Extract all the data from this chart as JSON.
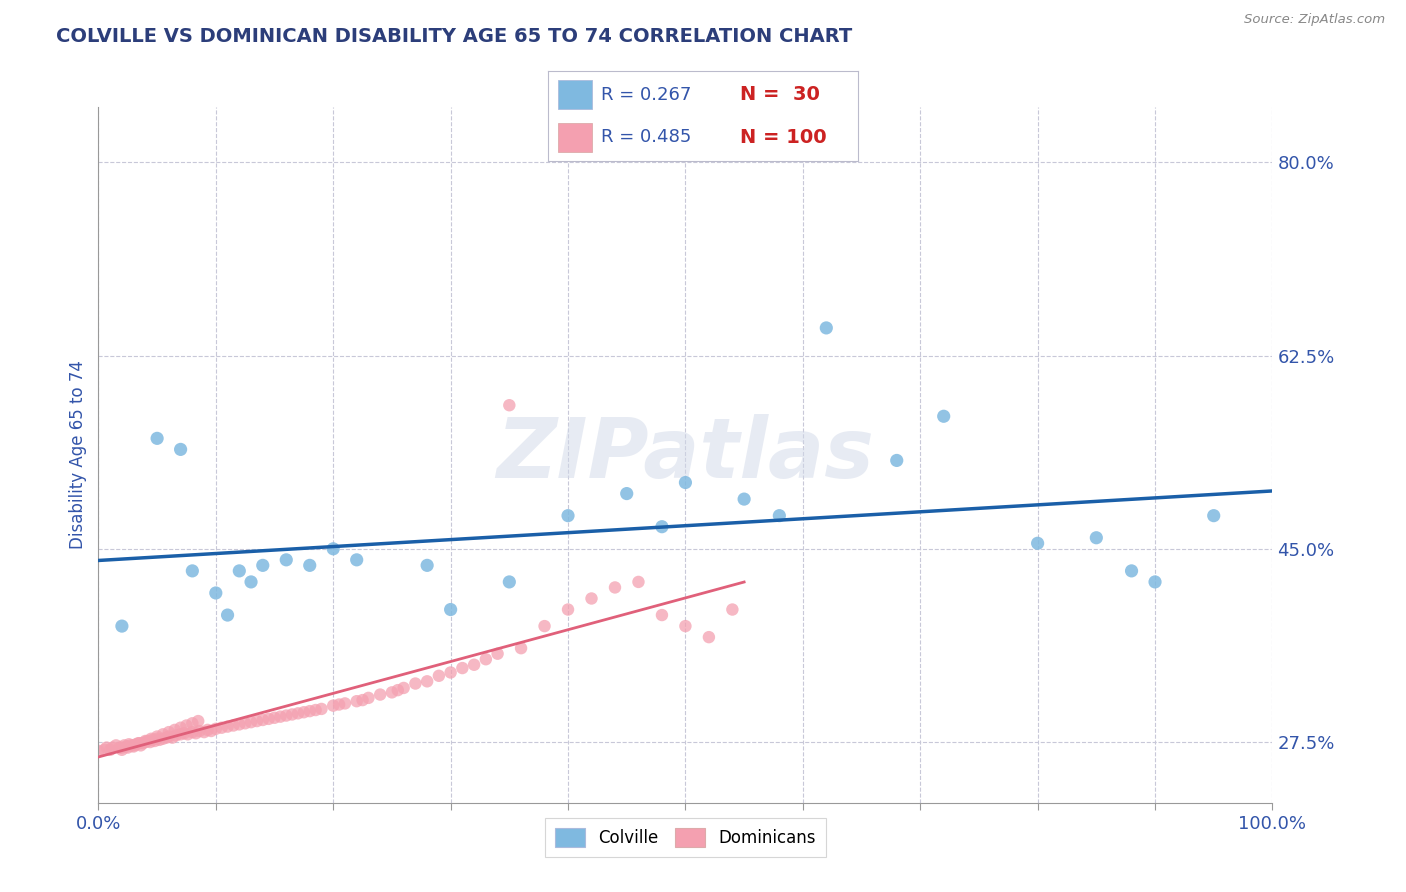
{
  "title": "COLVILLE VS DOMINICAN DISABILITY AGE 65 TO 74 CORRELATION CHART",
  "source": "Source: ZipAtlas.com",
  "ylabel": "Disability Age 65 to 74",
  "xlim": [
    0.0,
    1.0
  ],
  "ylim": [
    0.22,
    0.85
  ],
  "yticks": [
    0.275,
    0.45,
    0.625,
    0.8
  ],
  "ytick_labels": [
    "27.5%",
    "45.0%",
    "62.5%",
    "80.0%"
  ],
  "colville_color": "#7fb9e0",
  "dominican_color": "#f4a0b0",
  "colville_line_color": "#1a5fa8",
  "dominican_line_color": "#e0607a",
  "watermark": "ZIPatlas",
  "legend_R_colville": "R = 0.267",
  "legend_N_colville": "N =  30",
  "legend_R_dominican": "R = 0.485",
  "legend_N_dominican": "N = 100",
  "colville_x": [
    0.02,
    0.05,
    0.07,
    0.08,
    0.1,
    0.11,
    0.12,
    0.13,
    0.14,
    0.16,
    0.18,
    0.2,
    0.22,
    0.28,
    0.3,
    0.35,
    0.4,
    0.45,
    0.48,
    0.5,
    0.55,
    0.58,
    0.62,
    0.68,
    0.72,
    0.8,
    0.85,
    0.88,
    0.9,
    0.95
  ],
  "colville_y": [
    0.38,
    0.55,
    0.54,
    0.43,
    0.41,
    0.39,
    0.43,
    0.42,
    0.435,
    0.44,
    0.435,
    0.45,
    0.44,
    0.435,
    0.395,
    0.42,
    0.48,
    0.5,
    0.47,
    0.51,
    0.495,
    0.48,
    0.65,
    0.53,
    0.57,
    0.455,
    0.46,
    0.43,
    0.42,
    0.48
  ],
  "dominican_x": [
    0.0,
    0.005,
    0.007,
    0.01,
    0.012,
    0.015,
    0.018,
    0.02,
    0.022,
    0.024,
    0.026,
    0.028,
    0.03,
    0.032,
    0.034,
    0.036,
    0.038,
    0.04,
    0.042,
    0.044,
    0.046,
    0.048,
    0.05,
    0.052,
    0.055,
    0.058,
    0.06,
    0.063,
    0.066,
    0.07,
    0.073,
    0.076,
    0.08,
    0.083,
    0.086,
    0.09,
    0.093,
    0.096,
    0.1,
    0.105,
    0.11,
    0.115,
    0.12,
    0.125,
    0.13,
    0.135,
    0.14,
    0.145,
    0.15,
    0.155,
    0.16,
    0.165,
    0.17,
    0.175,
    0.18,
    0.185,
    0.19,
    0.2,
    0.205,
    0.21,
    0.22,
    0.225,
    0.23,
    0.24,
    0.25,
    0.255,
    0.26,
    0.27,
    0.28,
    0.29,
    0.3,
    0.31,
    0.32,
    0.33,
    0.34,
    0.35,
    0.36,
    0.38,
    0.4,
    0.42,
    0.44,
    0.46,
    0.48,
    0.5,
    0.52,
    0.54,
    0.02,
    0.025,
    0.03,
    0.035,
    0.04,
    0.045,
    0.05,
    0.055,
    0.06,
    0.065,
    0.07,
    0.075,
    0.08,
    0.085
  ],
  "dominican_y": [
    0.267,
    0.268,
    0.27,
    0.268,
    0.27,
    0.272,
    0.27,
    0.27,
    0.272,
    0.271,
    0.273,
    0.272,
    0.271,
    0.273,
    0.274,
    0.272,
    0.274,
    0.275,
    0.276,
    0.275,
    0.277,
    0.276,
    0.278,
    0.277,
    0.278,
    0.279,
    0.28,
    0.279,
    0.281,
    0.282,
    0.283,
    0.282,
    0.284,
    0.283,
    0.285,
    0.284,
    0.286,
    0.285,
    0.287,
    0.288,
    0.289,
    0.29,
    0.291,
    0.292,
    0.293,
    0.294,
    0.295,
    0.296,
    0.297,
    0.298,
    0.299,
    0.3,
    0.301,
    0.302,
    0.303,
    0.304,
    0.305,
    0.308,
    0.309,
    0.31,
    0.312,
    0.313,
    0.315,
    0.318,
    0.32,
    0.322,
    0.324,
    0.328,
    0.33,
    0.335,
    0.338,
    0.342,
    0.345,
    0.35,
    0.355,
    0.58,
    0.36,
    0.38,
    0.395,
    0.405,
    0.415,
    0.42,
    0.39,
    0.38,
    0.37,
    0.395,
    0.268,
    0.27,
    0.272,
    0.274,
    0.276,
    0.278,
    0.28,
    0.282,
    0.284,
    0.286,
    0.288,
    0.29,
    0.292,
    0.294
  ],
  "background_color": "#ffffff",
  "grid_color": "#c8c8d8",
  "title_color": "#2c3e7a",
  "axis_label_color": "#3355aa"
}
